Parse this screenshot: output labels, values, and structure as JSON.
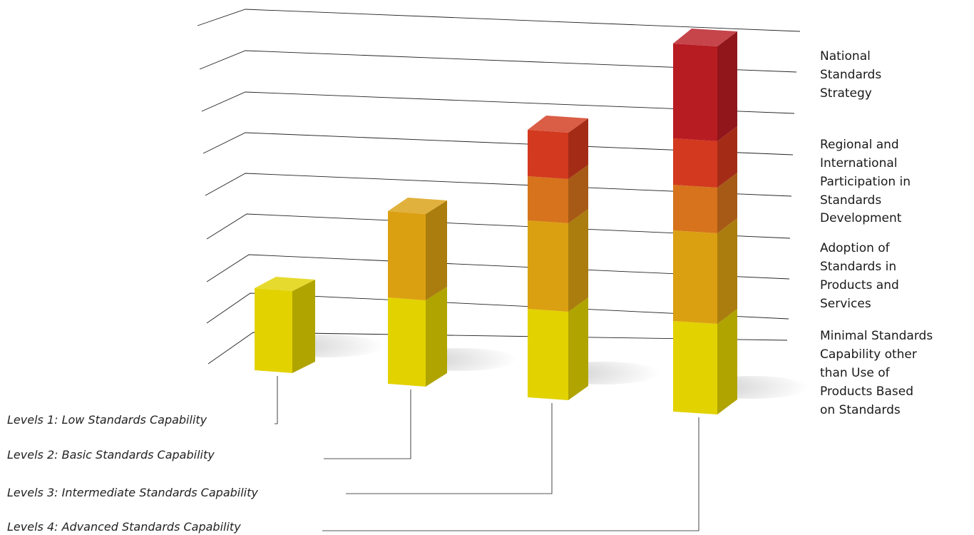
{
  "levels": [
    {
      "label": "Levels 1: Low Standards Capability",
      "stages": 1
    },
    {
      "label": "Levels 2: Basic Standards Capability",
      "stages": 2
    },
    {
      "label": "Levels 3: Intermediate Standards Capability",
      "stages": 4
    },
    {
      "label": "Levels 4: Advanced Standards Capability",
      "stages": 5
    }
  ],
  "layers": [
    {
      "lines": [
        "National",
        "Standards",
        "Strategy"
      ]
    },
    {
      "lines": [
        "Regional and",
        "International",
        "Participation in",
        "Standards",
        "Development"
      ]
    },
    {
      "lines": [
        "Adoption of",
        "Standards in",
        "Products and",
        "Services"
      ]
    },
    {
      "lines": [
        "Minimal Standards",
        "Capability other",
        "than Use of",
        "Products Based",
        "on Standards"
      ]
    }
  ],
  "colors": {
    "yellow": "#E2D200",
    "amber": "#DBA012",
    "orange": "#D6731C",
    "red_orange": "#D2391E",
    "red": "#B81C23",
    "grid": "#222222",
    "leader": "#555555"
  }
}
